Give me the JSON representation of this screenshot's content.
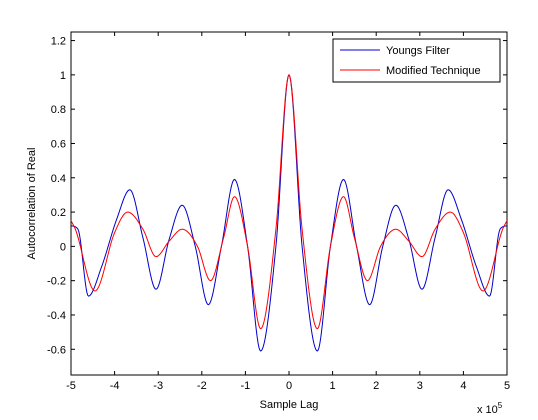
{
  "chart_data": {
    "type": "line",
    "title": "",
    "xlabel": "Sample Lag",
    "ylabel": "Autocorrelation of Real",
    "x_exponent_label": "x 10",
    "x_exponent_power": "5",
    "xlim": [
      -5,
      5
    ],
    "ylim": [
      -0.75,
      1.25
    ],
    "xticks": [
      -5,
      -4,
      -3,
      -2,
      -1,
      0,
      1,
      2,
      3,
      4,
      5
    ],
    "xtick_labels": [
      "-5",
      "-4",
      "-3",
      "-2",
      "-1",
      "0",
      "1",
      "2",
      "3",
      "4",
      "5"
    ],
    "yticks": [
      -0.6,
      -0.4,
      -0.2,
      0,
      0.2,
      0.4,
      0.6,
      0.8,
      1.0,
      1.2
    ],
    "ytick_labels": [
      "-0.6",
      "-0.4",
      "-0.2",
      "0",
      "0.2",
      "0.4",
      "0.6",
      "0.8",
      "1",
      "1.2"
    ],
    "grid": false,
    "legend_position": "top-right",
    "series": [
      {
        "name": "Youngs Filter",
        "color": "#0000cc",
        "x": [
          -5.0,
          -4.84,
          -4.6,
          -4.3,
          -3.95,
          -3.65,
          -3.35,
          -3.05,
          -2.75,
          -2.45,
          -2.15,
          -1.85,
          -1.55,
          -1.25,
          -0.95,
          -0.65,
          -0.3,
          0.0,
          0.3,
          0.65,
          0.95,
          1.25,
          1.55,
          1.85,
          2.15,
          2.45,
          2.75,
          3.05,
          3.35,
          3.65,
          3.95,
          4.3,
          4.6,
          4.84,
          5.0
        ],
        "y": [
          0.12,
          0.1,
          -0.29,
          -0.12,
          0.16,
          0.33,
          0.05,
          -0.25,
          0.04,
          0.24,
          0.0,
          -0.34,
          0.0,
          0.39,
          0.0,
          -0.61,
          0.0,
          1.0,
          0.0,
          -0.61,
          0.0,
          0.39,
          0.0,
          -0.34,
          0.0,
          0.24,
          0.04,
          -0.25,
          0.05,
          0.33,
          0.16,
          -0.12,
          -0.29,
          0.1,
          0.12
        ]
      },
      {
        "name": "Modified Technique",
        "color": "#ff0000",
        "x": [
          -5.0,
          -4.9,
          -4.45,
          -4.0,
          -3.7,
          -3.35,
          -3.05,
          -2.75,
          -2.45,
          -2.1,
          -1.8,
          -1.5,
          -1.25,
          -0.95,
          -0.65,
          -0.3,
          0.0,
          0.3,
          0.65,
          0.95,
          1.25,
          1.5,
          1.8,
          2.1,
          2.45,
          2.75,
          3.05,
          3.35,
          3.7,
          4.0,
          4.45,
          4.9,
          5.0
        ],
        "y": [
          0.15,
          0.1,
          -0.26,
          0.08,
          0.2,
          0.1,
          -0.06,
          0.03,
          0.1,
          0.0,
          -0.2,
          0.05,
          0.29,
          0.0,
          -0.48,
          0.1,
          1.0,
          0.1,
          -0.48,
          0.0,
          0.29,
          0.05,
          -0.2,
          0.0,
          0.1,
          0.03,
          -0.06,
          0.1,
          0.2,
          0.08,
          -0.26,
          0.1,
          0.15
        ]
      }
    ]
  }
}
